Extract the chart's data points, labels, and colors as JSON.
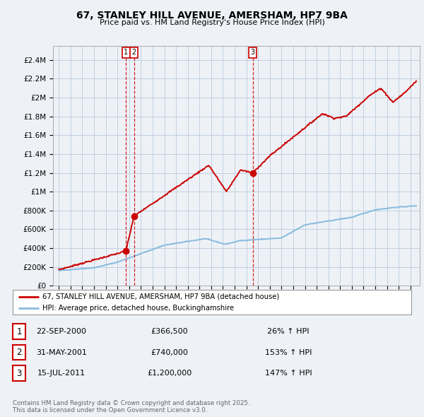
{
  "title": "67, STANLEY HILL AVENUE, AMERSHAM, HP7 9BA",
  "subtitle": "Price paid vs. HM Land Registry's House Price Index (HPI)",
  "background_color": "#eef2f7",
  "plot_background": "#eef2f7",
  "grid_color": "#c0cfe0",
  "red_color": "#cc0000",
  "blue_color": "#88bbdd",
  "yticks": [
    0,
    200000,
    400000,
    600000,
    800000,
    1000000,
    1200000,
    1400000,
    1600000,
    1800000,
    2000000,
    2200000,
    2400000
  ],
  "ytick_labels": [
    "£0",
    "£200K",
    "£400K",
    "£600K",
    "£800K",
    "£1M",
    "£1.2M",
    "£1.4M",
    "£1.6M",
    "£1.8M",
    "£2M",
    "£2.2M",
    "£2.4M"
  ],
  "xmin": 1994.5,
  "xmax": 2025.8,
  "ymin": 0,
  "ymax": 2550000,
  "sale_dates": [
    2000.72,
    2001.41,
    2011.54
  ],
  "sale_prices": [
    366500,
    740000,
    1200000
  ],
  "sale_labels": [
    "1",
    "2",
    "3"
  ],
  "legend_entries": [
    "67, STANLEY HILL AVENUE, AMERSHAM, HP7 9BA (detached house)",
    "HPI: Average price, detached house, Buckinghamshire"
  ],
  "table_rows": [
    [
      "1",
      "22-SEP-2000",
      "£366,500",
      "26% ↑ HPI"
    ],
    [
      "2",
      "31-MAY-2001",
      "£740,000",
      "153% ↑ HPI"
    ],
    [
      "3",
      "15-JUL-2011",
      "£1,200,000",
      "147% ↑ HPI"
    ]
  ],
  "footnote": "Contains HM Land Registry data © Crown copyright and database right 2025.\nThis data is licensed under the Open Government Licence v3.0."
}
